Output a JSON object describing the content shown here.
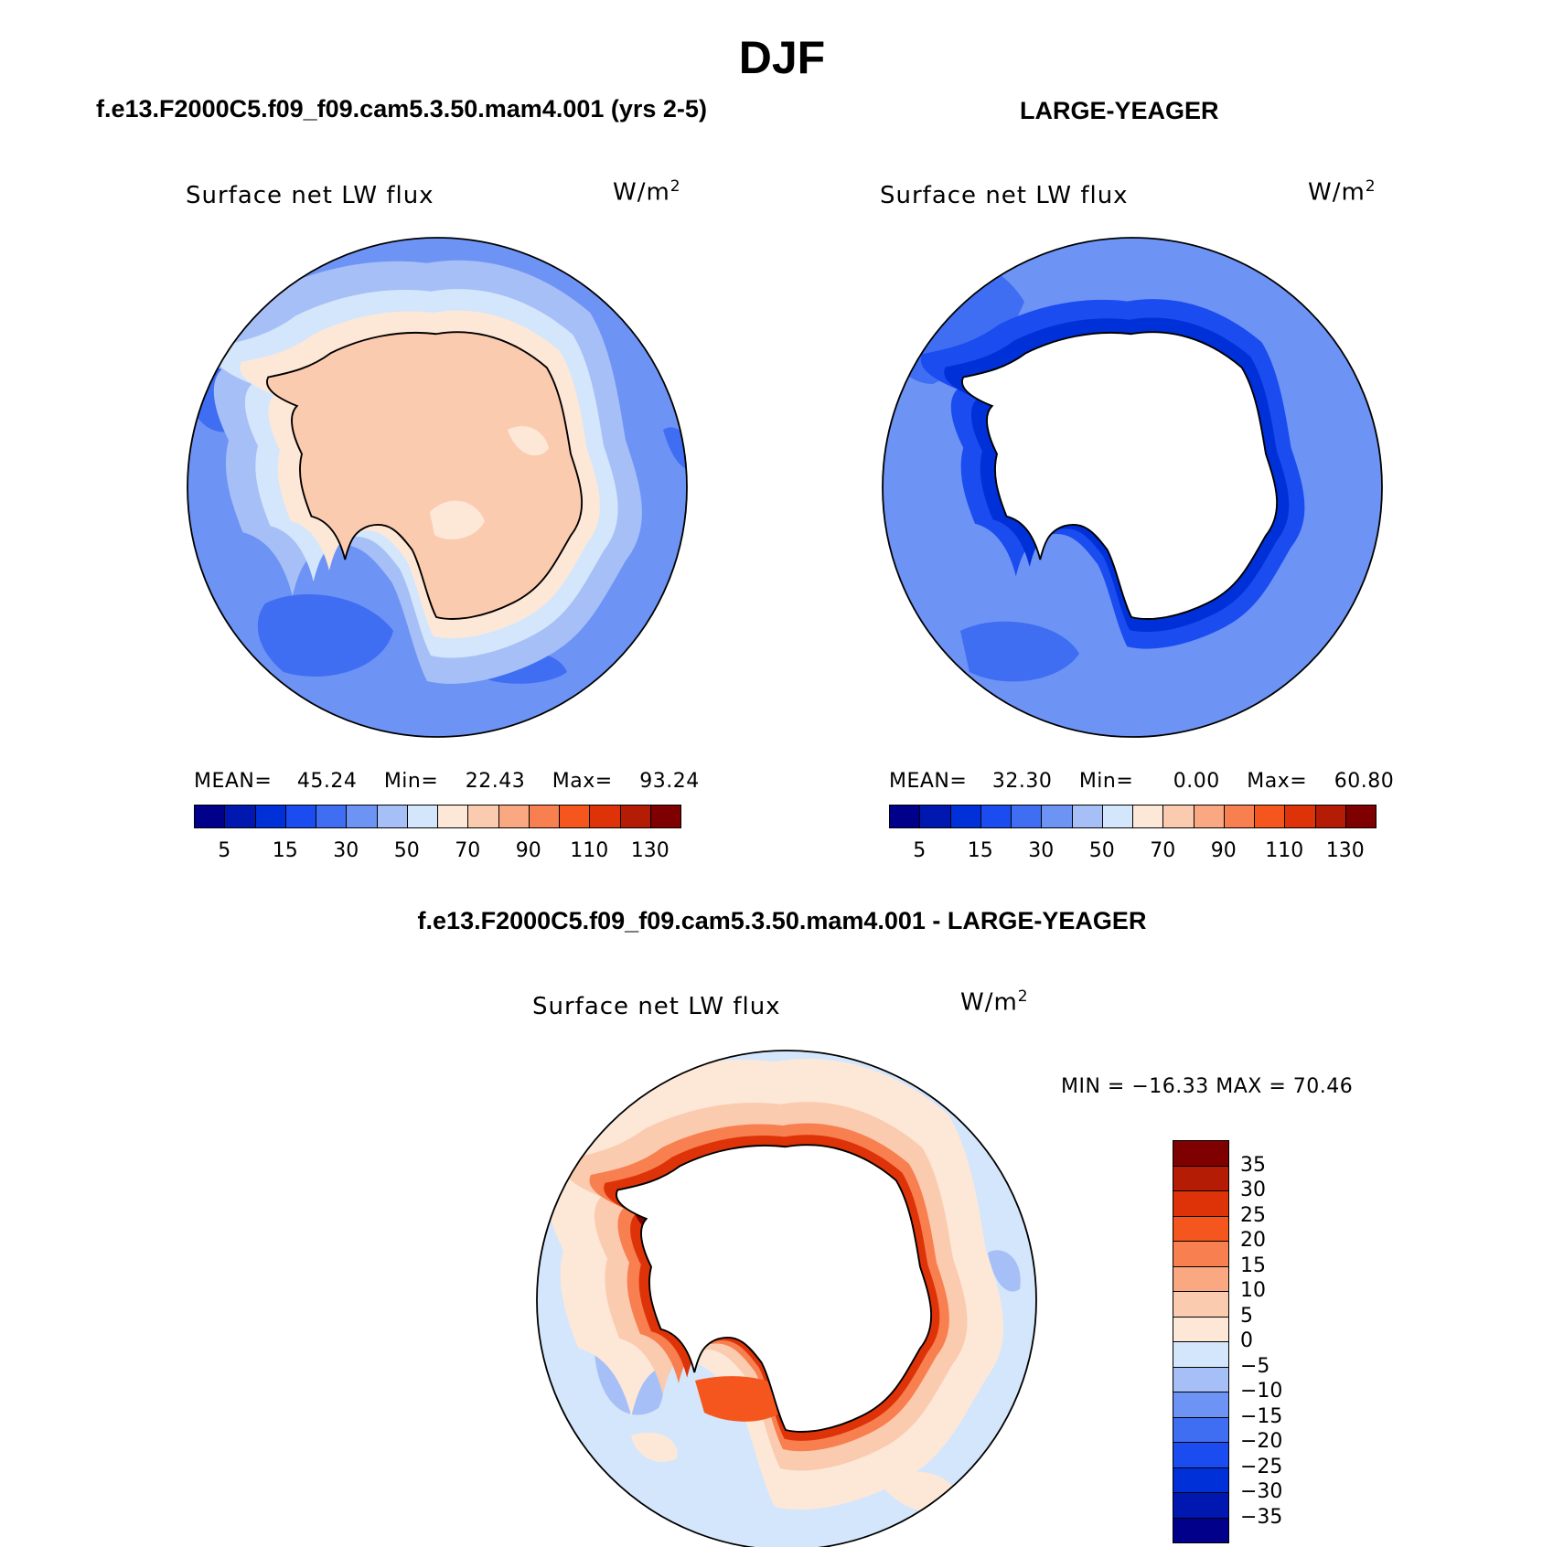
{
  "figure": {
    "title": "DJF",
    "panel_left_title": "f.e13.F2000C5.f09_f09.cam5.3.50.mam4.001 (yrs 2-5)",
    "panel_right_title": "LARGE-YEAGER",
    "panel_bottom_title": "f.e13.F2000C5.f09_f09.cam5.3.50.mam4.001 - LARGE-YEAGER"
  },
  "panels": {
    "left": {
      "variable": "Surface net LW flux",
      "units": "W/m",
      "units_sup": "2",
      "mean_label": "MEAN=",
      "mean_value": "45.24",
      "min_label": "Min=",
      "min_value": "22.43",
      "max_label": "Max=",
      "max_value": "93.24"
    },
    "right": {
      "variable": "Surface net LW flux",
      "units": "W/m",
      "units_sup": "2",
      "mean_label": "MEAN=",
      "mean_value": "32.30",
      "min_label": "Min=",
      "min_value": "0.00",
      "max_label": "Max=",
      "max_value": "60.80"
    },
    "bottom": {
      "variable": "Surface net LW flux",
      "units": "W/m",
      "units_sup": "2",
      "minmax_text": "MIN = −16.33 MAX =  70.46"
    }
  },
  "colorbar_abs": {
    "colors": [
      "#00008b",
      "#0018b0",
      "#0030d8",
      "#1a4cf0",
      "#3f6ef2",
      "#6d93f5",
      "#a6c0f7",
      "#d4e6fb",
      "#fde8d8",
      "#fbcbb0",
      "#f9a882",
      "#f87f4f",
      "#f4561e",
      "#de3308",
      "#b41c05",
      "#7f0000"
    ],
    "tick_labels": [
      "5",
      "15",
      "30",
      "50",
      "70",
      "90",
      "110",
      "130"
    ]
  },
  "colorbar_diff": {
    "colors": [
      "#00008b",
      "#0018b0",
      "#0030d8",
      "#1a4cf0",
      "#3f6ef2",
      "#6d93f5",
      "#a6c0f7",
      "#d4e6fb",
      "#fde8d8",
      "#fbcbb0",
      "#f9a882",
      "#f87f4f",
      "#f4561e",
      "#de3308",
      "#b41c05",
      "#7f0000"
    ],
    "tick_labels": [
      "35",
      "30",
      "25",
      "20",
      "15",
      "10",
      "5",
      "0",
      "−5",
      "−10",
      "−15",
      "−20",
      "−25",
      "−30",
      "−35"
    ]
  },
  "icons": {
    "map_projection": "polar-stereographic-south"
  }
}
